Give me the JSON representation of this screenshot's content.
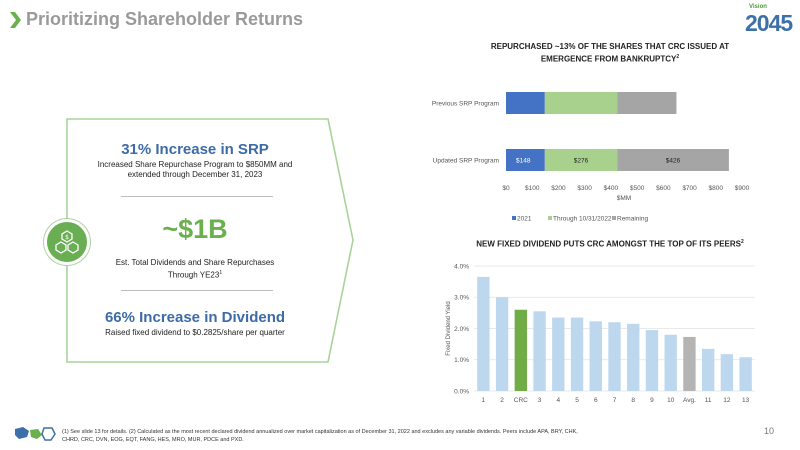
{
  "header": {
    "title": "Prioritizing Shareholder Returns",
    "logo_tag": "Vision",
    "logo_number": "2045"
  },
  "left_panel": {
    "srp_headline": "31% Increase in SRP",
    "srp_desc_line1": "Increased Share Repurchase Program to $850MM and",
    "srp_desc_line2": "extended through December 31, 2023",
    "big_value": "~$1B",
    "big_desc_line1": "Est. Total Dividends and Share Repurchases",
    "big_desc_line2": "Through YE23",
    "big_desc_sup": "1",
    "div_headline": "66% Increase in Dividend",
    "div_desc": "Raised fixed dividend to $0.2825/share per quarter"
  },
  "colors": {
    "blue": "#4472c4",
    "light_green": "#a9d18e",
    "gray": "#a5a5a5",
    "light_blue": "#bdd7ee",
    "crc_green": "#70ad47",
    "avg_gray": "#b4b4b4",
    "accent_green": "#6ab04c",
    "headline_blue": "#3d6ba8"
  },
  "chart_data": [
    {
      "type": "bar",
      "orientation": "horizontal",
      "stacked": true,
      "title_line1": "REPURCHASED ~13% OF THE SHARES THAT CRC ISSUED AT",
      "title_line2": "EMERGENCE FROM BANKRUPTCY",
      "title_sup": "2",
      "categories": [
        "Previous SRP Program",
        "Updated SRP Program"
      ],
      "series": [
        {
          "name": "2021",
          "values": [
            148,
            148
          ],
          "labels": [
            "",
            "$148"
          ]
        },
        {
          "name": "Through 10/31/2022",
          "values": [
            276,
            276
          ],
          "labels": [
            "",
            "$276"
          ]
        },
        {
          "name": "Remaining",
          "values": [
            226,
            426
          ],
          "labels": [
            "",
            "$426"
          ]
        }
      ],
      "xlim": [
        0,
        900
      ],
      "xticks": [
        "$0",
        "$100",
        "$200",
        "$300",
        "$400",
        "$500",
        "$600",
        "$700",
        "$800",
        "$900"
      ],
      "xlabel": "$MM",
      "legend_position": "bottom"
    },
    {
      "type": "bar",
      "title": "NEW FIXED DIVIDEND PUTS CRC AMONGST THE TOP OF ITS PEERS",
      "title_sup": "2",
      "ylabel": "Fixed Dividend Yield",
      "categories": [
        "1",
        "2",
        "CRC",
        "3",
        "4",
        "5",
        "6",
        "7",
        "8",
        "9",
        "10",
        "Avg.",
        "11",
        "12",
        "13"
      ],
      "values": [
        3.65,
        3.0,
        2.6,
        2.55,
        2.35,
        2.35,
        2.23,
        2.2,
        2.15,
        1.95,
        1.8,
        1.73,
        1.35,
        1.18,
        1.08
      ],
      "highlight": {
        "CRC": "crc",
        "Avg.": "avg"
      },
      "ylim": [
        0,
        4.0
      ],
      "yticks": [
        "0.0%",
        "1.0%",
        "2.0%",
        "3.0%",
        "4.0%"
      ],
      "grid": true
    }
  ],
  "footer": {
    "note_line1": "(1) See slide 13 for details. (2) Calculated as the most recent declared dividend annualized over market capitalization as of December 31, 2022 and excludes any variable dividends. Peers include APA, BRY, CHK,",
    "note_line2": "CHRD, CRC, DVN, EOG, EQT, FANG, HES, MRO, MUR, PDCE and PXD.",
    "page_number": "10"
  }
}
